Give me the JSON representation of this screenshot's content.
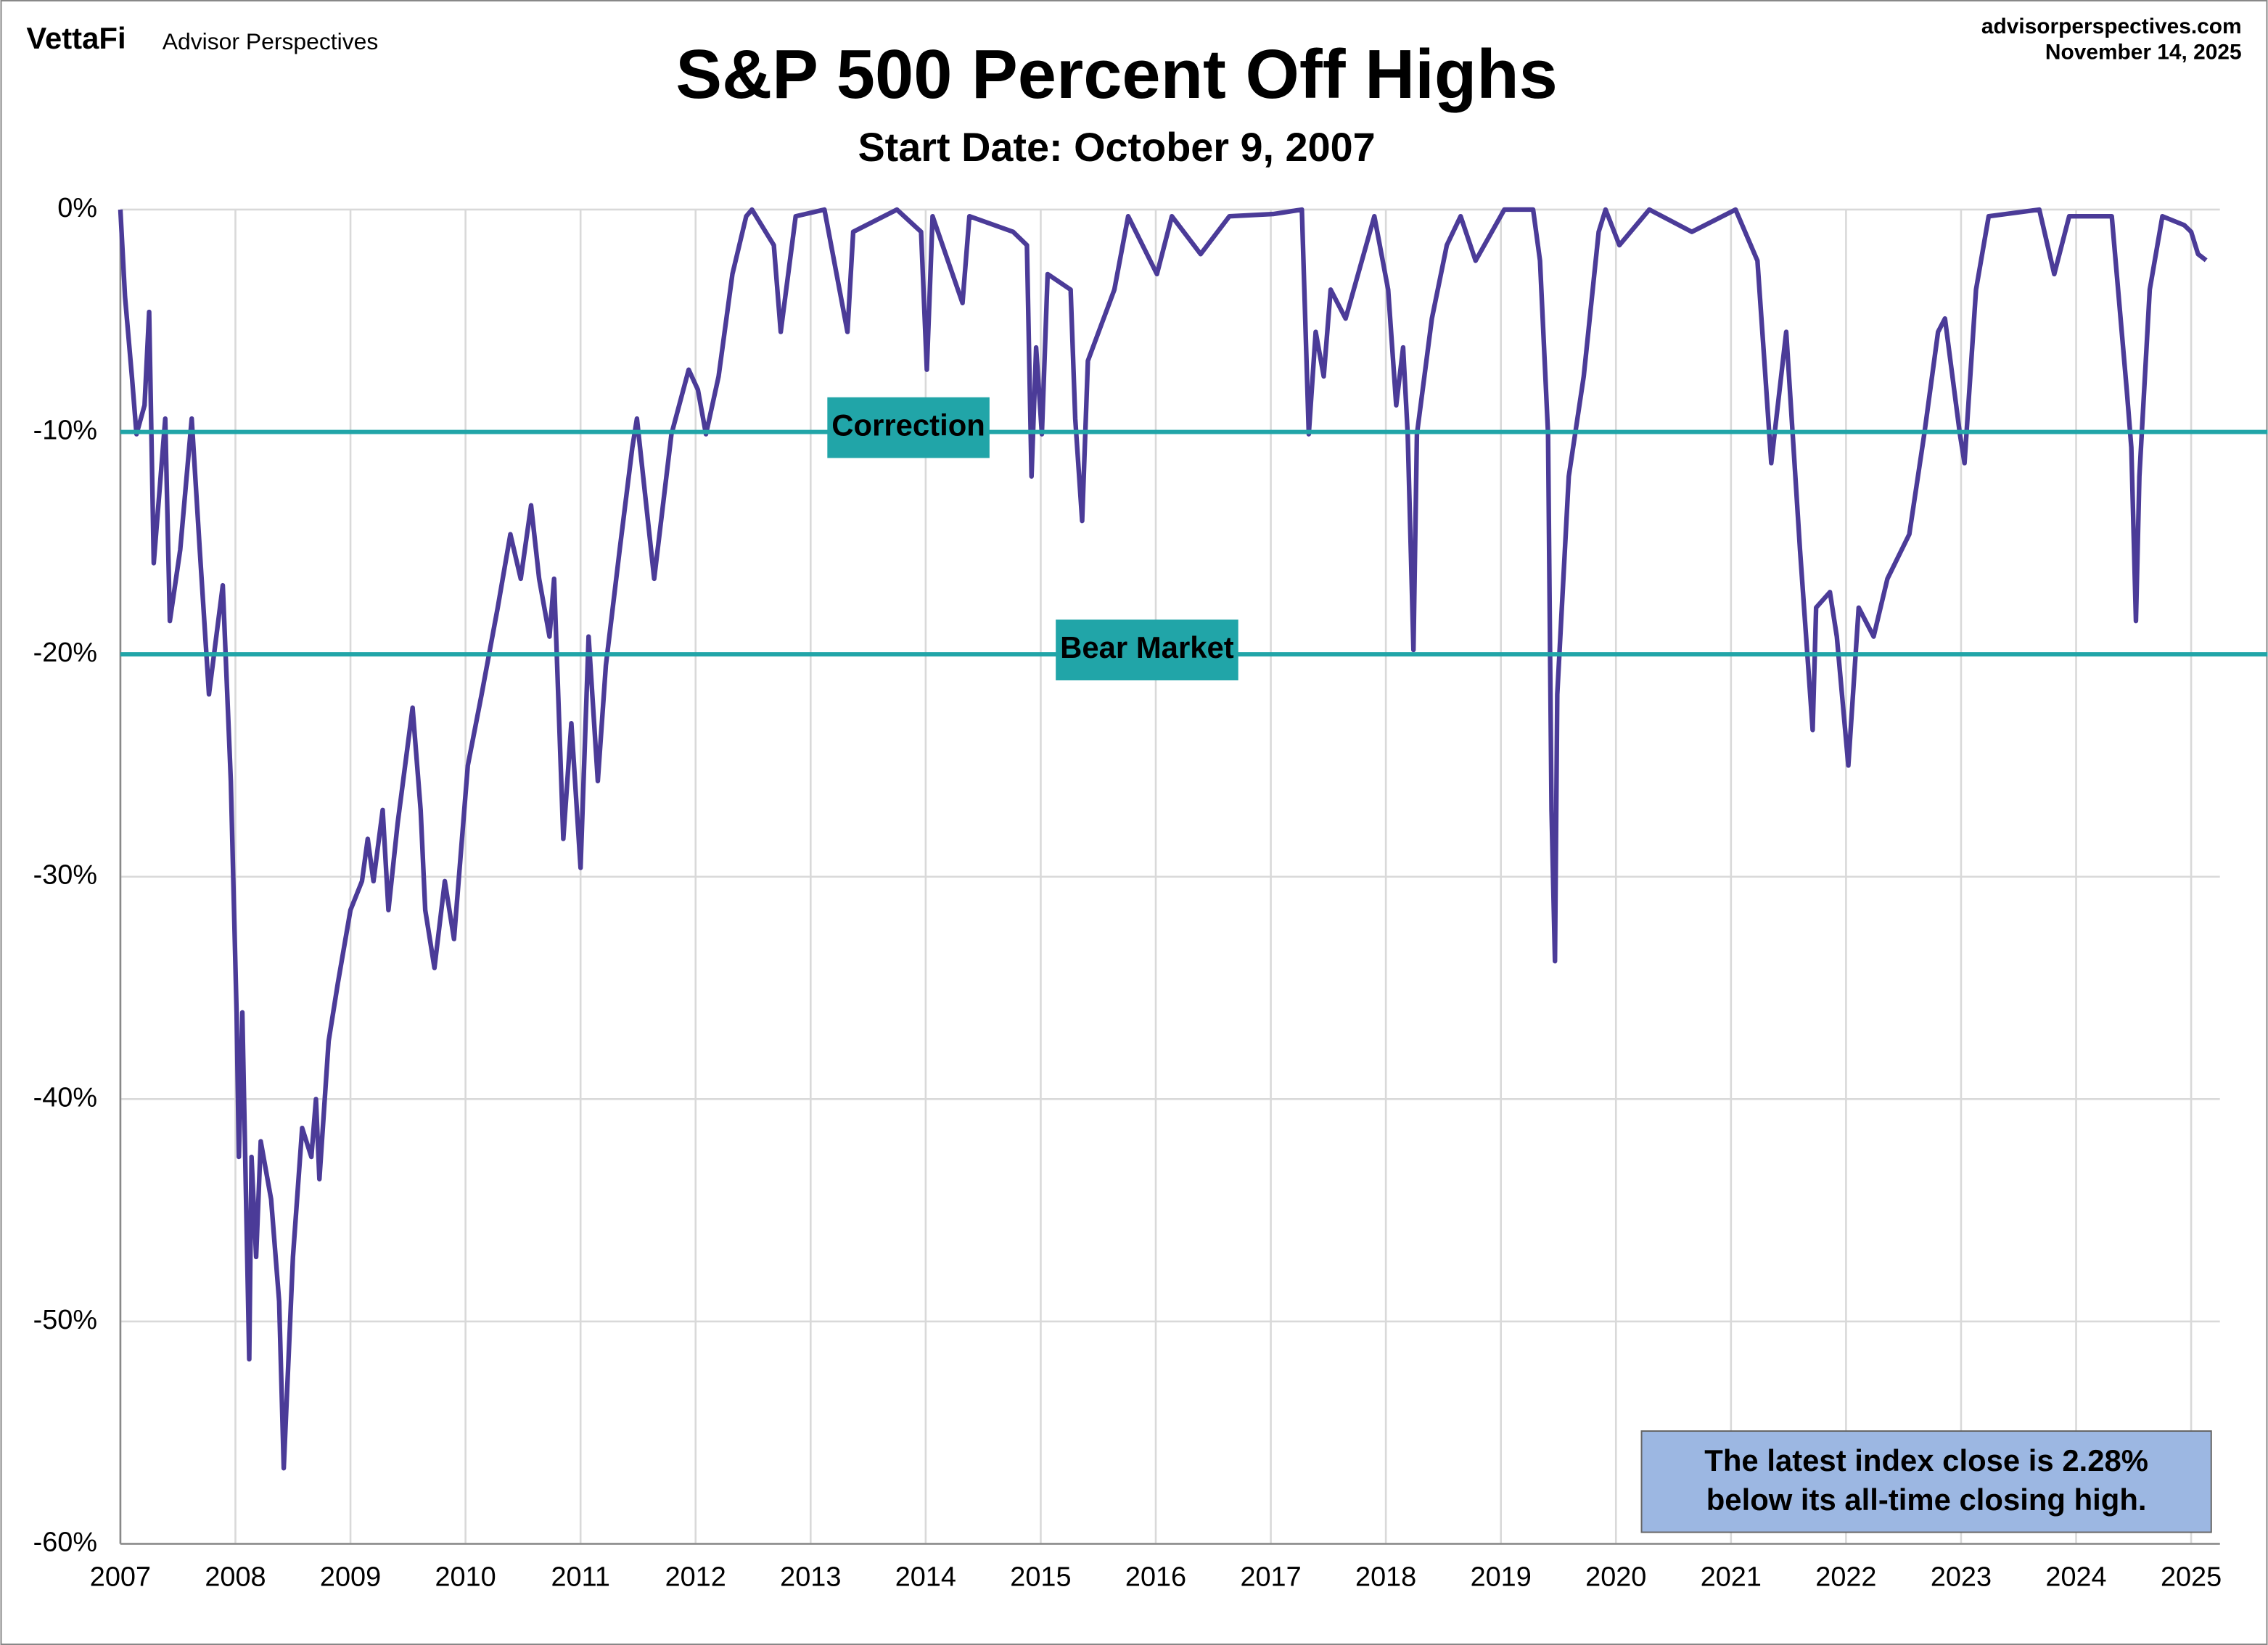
{
  "brand": "VettaFi",
  "brand_sub": "Advisor Perspectives",
  "site": "advisorperspectives.com",
  "date": "November 14, 2025",
  "chart_data": {
    "type": "line",
    "title": "S&P 500 Percent Off Highs",
    "subtitle": "Start Date: October 9, 2007",
    "x": [
      2007.0,
      2007.04,
      2007.1,
      2007.14,
      2007.21,
      2007.25,
      2007.29,
      2007.39,
      2007.43,
      2007.52,
      2007.62,
      2007.69,
      2007.77,
      2007.89,
      2007.96,
      2008.01,
      2008.03,
      2008.06,
      2008.12,
      2008.14,
      2008.18,
      2008.22,
      2008.31,
      2008.38,
      2008.42,
      2008.5,
      2008.58,
      2008.66,
      2008.7,
      2008.73,
      2008.81,
      2008.89,
      2009.0,
      2009.1,
      2009.15,
      2009.2,
      2009.28,
      2009.33,
      2009.41,
      2009.54,
      2009.61,
      2009.65,
      2009.73,
      2009.82,
      2009.9,
      2010.02,
      2010.14,
      2010.28,
      2010.39,
      2010.48,
      2010.57,
      2010.64,
      2010.73,
      2010.77,
      2010.85,
      2010.92,
      2011.0,
      2011.07,
      2011.15,
      2011.22,
      2011.34,
      2011.45,
      2011.49,
      2011.64,
      2011.79,
      2011.94,
      2012.02,
      2012.09,
      2012.2,
      2012.32,
      2012.44,
      2012.49,
      2012.68,
      2012.74,
      2012.87,
      2013.12,
      2013.32,
      2013.37,
      2013.75,
      2013.96,
      2014.01,
      2014.06,
      2014.32,
      2014.38,
      2014.76,
      2014.88,
      2014.92,
      2014.96,
      2015.01,
      2015.06,
      2015.26,
      2015.3,
      2015.36,
      2015.41,
      2015.64,
      2015.76,
      2016.01,
      2016.14,
      2016.39,
      2016.64,
      2017.02,
      2017.27,
      2017.33,
      2017.39,
      2017.46,
      2017.52,
      2017.65,
      2017.9,
      2018.02,
      2018.09,
      2018.15,
      2018.19,
      2018.24,
      2018.27,
      2018.4,
      2018.53,
      2018.65,
      2018.78,
      2019.03,
      2019.28,
      2019.34,
      2019.41,
      2019.44,
      2019.47,
      2019.49,
      2019.59,
      2019.72,
      2019.85,
      2019.91,
      2020.03,
      2020.29,
      2020.66,
      2021.04,
      2021.23,
      2021.29,
      2021.35,
      2021.48,
      2021.6,
      2021.71,
      2021.74,
      2021.86,
      2021.92,
      2022.02,
      2022.11,
      2022.24,
      2022.36,
      2022.55,
      2022.68,
      2022.8,
      2022.86,
      2022.99,
      2023.03,
      2023.13,
      2023.24,
      2023.68,
      2023.81,
      2023.94,
      2024.31,
      2024.44,
      2024.48,
      2024.52,
      2024.55,
      2024.64,
      2024.75,
      2024.94,
      2025.0,
      2025.06,
      2025.13
    ],
    "series": [
      {
        "color": "#4b3b98",
        "values": [
          0,
          -3.9,
          -7.5,
          -10.1,
          -8.8,
          -4.6,
          -15.9,
          -9.4,
          -18.5,
          -15.3,
          -9.4,
          -15.3,
          -21.8,
          -16.9,
          -25.7,
          -36.1,
          -42.6,
          -36.1,
          -51.7,
          -42.6,
          -47.1,
          -41.9,
          -44.5,
          -49.1,
          -56.6,
          -47.1,
          -41.3,
          -42.6,
          -40.0,
          -43.6,
          -37.4,
          -34.8,
          -31.5,
          -30.2,
          -28.3,
          -30.2,
          -27.0,
          -31.5,
          -27.6,
          -22.4,
          -27.0,
          -31.5,
          -34.1,
          -30.2,
          -32.8,
          -25.0,
          -21.8,
          -17.9,
          -14.6,
          -16.6,
          -13.3,
          -16.6,
          -19.2,
          -16.6,
          -28.3,
          -23.1,
          -29.6,
          -19.2,
          -25.7,
          -20.5,
          -15.3,
          -10.7,
          -9.4,
          -16.6,
          -10.1,
          -7.2,
          -8.1,
          -10.1,
          -7.5,
          -2.9,
          -0.3,
          0,
          -1.6,
          -5.5,
          -0.3,
          0,
          -5.5,
          -1.0,
          0,
          -1.0,
          -7.2,
          -0.3,
          -4.2,
          -0.3,
          -1.0,
          -1.6,
          -12.0,
          -6.2,
          -10.1,
          -2.9,
          -3.6,
          -9.4,
          -14.0,
          -6.8,
          -3.6,
          -0.3,
          -2.9,
          -0.3,
          -2.0,
          -0.3,
          -0.2,
          0,
          -10.1,
          -5.5,
          -7.5,
          -3.6,
          -4.9,
          -0.3,
          -3.6,
          -8.8,
          -6.2,
          -10.1,
          -19.8,
          -10.1,
          -4.9,
          -1.6,
          -0.3,
          -2.3,
          0,
          0,
          -2.3,
          -10.1,
          -27.0,
          -33.8,
          -21.8,
          -12.0,
          -7.5,
          -1.0,
          0,
          -1.6,
          0,
          -1.0,
          0,
          -2.3,
          -6.8,
          -11.4,
          -5.5,
          -15.3,
          -23.4,
          -17.9,
          -17.2,
          -19.2,
          -25.0,
          -17.9,
          -19.2,
          -16.6,
          -14.6,
          -10.1,
          -5.5,
          -4.9,
          -10.1,
          -11.4,
          -3.6,
          -0.3,
          0,
          -2.9,
          -0.3,
          -0.3,
          -8.1,
          -10.7,
          -18.5,
          -12.0,
          -3.6,
          -0.3,
          -0.7,
          -1.0,
          -2.0,
          -2.28
        ]
      }
    ],
    "xlim": [
      2007,
      2025.25
    ],
    "xticks": [
      2007,
      2008,
      2009,
      2010,
      2011,
      2012,
      2013,
      2014,
      2015,
      2016,
      2017,
      2018,
      2019,
      2020,
      2021,
      2022,
      2023,
      2024,
      2025
    ],
    "ylim": [
      -60,
      0
    ],
    "yticks": [
      {
        "value": 0,
        "label": "0%"
      },
      {
        "value": -10,
        "label": "-10%"
      },
      {
        "value": -20,
        "label": "-20%"
      },
      {
        "value": -30,
        "label": "-30%"
      },
      {
        "value": -40,
        "label": "-40%"
      },
      {
        "value": -50,
        "label": "-50%"
      },
      {
        "value": -60,
        "label": "-60%"
      }
    ],
    "grid": true,
    "reference_lines": [
      {
        "value": -10,
        "label": "Correction",
        "color": "#21a5a8"
      },
      {
        "value": -20,
        "label": "Bear Market",
        "color": "#21a5a8"
      }
    ],
    "annotation": [
      "The latest index close is 2.28%",
      "below its all-time closing high."
    ]
  }
}
